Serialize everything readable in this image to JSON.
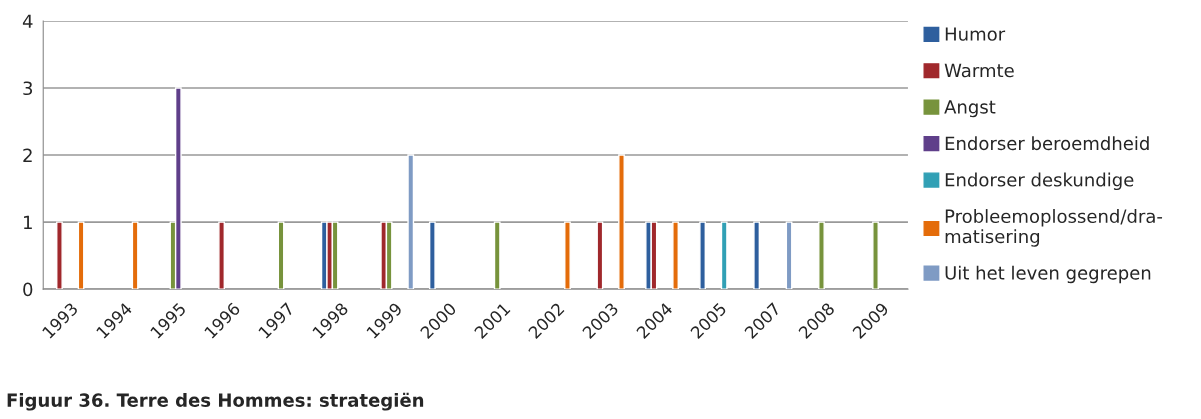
{
  "chart_data": {
    "type": "bar",
    "title": "Figuur 36. Terre des Hommes: strategiën",
    "categories": [
      "1993",
      "1994",
      "1995",
      "1996",
      "1997",
      "1998",
      "1999",
      "2000",
      "2001",
      "2002",
      "2003",
      "2004",
      "2005",
      "2007",
      "2008",
      "2009"
    ],
    "series": [
      {
        "name": "Humor",
        "color": "#2e5f9e",
        "values": [
          null,
          null,
          null,
          null,
          null,
          1,
          null,
          1,
          null,
          null,
          null,
          1,
          1,
          1,
          null,
          null
        ]
      },
      {
        "name": "Warmte",
        "color": "#a0282c",
        "values": [
          1,
          null,
          null,
          1,
          null,
          1,
          1,
          null,
          null,
          null,
          1,
          1,
          null,
          null,
          null,
          null
        ]
      },
      {
        "name": "Angst",
        "color": "#77933c",
        "values": [
          null,
          null,
          1,
          null,
          1,
          1,
          1,
          null,
          1,
          null,
          null,
          null,
          null,
          null,
          1,
          1
        ]
      },
      {
        "name": "Endorser beroemdheid",
        "color": "#5f3f8a",
        "values": [
          null,
          null,
          3,
          null,
          null,
          null,
          null,
          null,
          null,
          null,
          null,
          null,
          null,
          null,
          null,
          null
        ]
      },
      {
        "name": "Endorser deskundige",
        "color": "#31a0b5",
        "values": [
          null,
          null,
          null,
          null,
          null,
          null,
          null,
          null,
          null,
          null,
          null,
          null,
          1,
          null,
          null,
          null
        ]
      },
      {
        "name": "Probleemoplossend/dra-\nmatisering",
        "color": "#e46c0a",
        "values": [
          1,
          1,
          null,
          null,
          null,
          null,
          null,
          null,
          null,
          1,
          2,
          1,
          null,
          null,
          null,
          null
        ]
      },
      {
        "name": "Uit het leven gegrepen",
        "color": "#7f9bc4",
        "values": [
          null,
          null,
          null,
          null,
          null,
          null,
          2,
          null,
          null,
          null,
          null,
          null,
          null,
          1,
          null,
          null
        ]
      }
    ],
    "ylim": [
      0,
      4
    ],
    "yticks": [
      0,
      1,
      2,
      3,
      4
    ],
    "grid": "y",
    "legend": "right"
  }
}
